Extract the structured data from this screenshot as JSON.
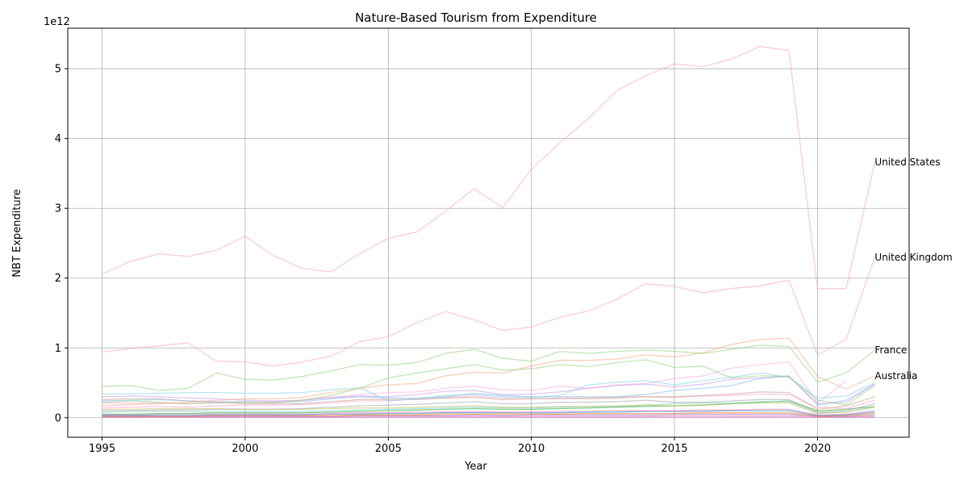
{
  "chart_data": {
    "type": "line",
    "title": "Nature-Based Tourism from Expenditure",
    "xlabel": "Year",
    "ylabel": "NBT Expenditure",
    "offset_label": "1e12",
    "x": [
      1995,
      1996,
      1997,
      1998,
      1999,
      2000,
      2001,
      2002,
      2003,
      2004,
      2005,
      2006,
      2007,
      2008,
      2009,
      2010,
      2011,
      2012,
      2013,
      2014,
      2015,
      2016,
      2017,
      2018,
      2019,
      2020,
      2021,
      2022
    ],
    "xticks": [
      1995,
      2000,
      2005,
      2010,
      2015,
      2020
    ],
    "yticks": [
      0,
      1,
      2,
      3,
      4,
      5
    ],
    "xlim": [
      1993.8,
      2023.2
    ],
    "ylim": [
      -0.28,
      5.58
    ],
    "grid": true,
    "line_alpha": 0.55,
    "series": [
      {
        "name": "United States",
        "color": "#f7a1c4",
        "labeled": true,
        "values": [
          2.06,
          2.24,
          2.35,
          2.31,
          2.4,
          2.6,
          2.32,
          2.14,
          2.09,
          2.35,
          2.57,
          2.66,
          2.96,
          3.28,
          3.01,
          3.56,
          3.94,
          4.29,
          4.69,
          4.9,
          5.07,
          5.03,
          5.14,
          5.32,
          5.26,
          1.85,
          1.85,
          3.66
        ]
      },
      {
        "name": "United Kingdom",
        "color": "#f7a1c4",
        "labeled": true,
        "values": [
          0.94,
          0.99,
          1.03,
          1.07,
          0.81,
          0.8,
          0.74,
          0.8,
          0.88,
          1.09,
          1.16,
          1.36,
          1.52,
          1.4,
          1.25,
          1.3,
          1.44,
          1.53,
          1.7,
          1.92,
          1.88,
          1.79,
          1.85,
          1.89,
          1.97,
          0.9,
          1.12,
          2.3
        ]
      },
      {
        "name": "France",
        "color": "#8fcf7a",
        "labeled": true,
        "values": [
          0.45,
          0.46,
          0.39,
          0.42,
          0.64,
          0.55,
          0.54,
          0.59,
          0.67,
          0.76,
          0.75,
          0.79,
          0.92,
          0.98,
          0.85,
          0.81,
          0.95,
          0.92,
          0.95,
          0.97,
          0.95,
          0.92,
          0.98,
          1.04,
          1.02,
          0.51,
          0.64,
          0.97
        ]
      },
      {
        "name": "Australia",
        "color": "#f4a582",
        "labeled": true,
        "values": [
          0.17,
          0.19,
          0.2,
          0.22,
          0.25,
          0.27,
          0.27,
          0.29,
          0.36,
          0.42,
          0.47,
          0.49,
          0.6,
          0.65,
          0.64,
          0.74,
          0.82,
          0.82,
          0.84,
          0.9,
          0.87,
          0.93,
          1.05,
          1.12,
          1.14,
          0.59,
          0.41,
          0.6
        ]
      },
      {
        "color": "#8fcf7a",
        "values": [
          0.22,
          0.24,
          0.22,
          0.2,
          0.21,
          0.22,
          0.21,
          0.25,
          0.32,
          0.42,
          0.57,
          0.64,
          0.7,
          0.76,
          0.68,
          0.7,
          0.76,
          0.73,
          0.79,
          0.83,
          0.72,
          0.74,
          0.57,
          0.6,
          0.59,
          0.25,
          0.18,
          0.46
        ]
      },
      {
        "color": "#7fd1e8",
        "values": [
          0.34,
          0.34,
          0.35,
          0.36,
          0.36,
          0.35,
          0.35,
          0.36,
          0.4,
          0.43,
          0.24,
          0.27,
          0.32,
          0.33,
          0.3,
          0.29,
          0.32,
          0.47,
          0.51,
          0.53,
          0.47,
          0.53,
          0.58,
          0.64,
          0.58,
          0.28,
          0.31,
          0.5
        ]
      },
      {
        "color": "#c49be8",
        "values": [
          0.3,
          0.31,
          0.3,
          0.28,
          0.27,
          0.25,
          0.24,
          0.25,
          0.29,
          0.31,
          0.3,
          0.33,
          0.38,
          0.39,
          0.33,
          0.34,
          0.37,
          0.42,
          0.46,
          0.48,
          0.44,
          0.48,
          0.55,
          0.57,
          0.59,
          0.2,
          0.22,
          0.48
        ]
      },
      {
        "color": "#f9a8e0",
        "values": [
          0.21,
          0.21,
          0.21,
          0.2,
          0.22,
          0.22,
          0.23,
          0.25,
          0.29,
          0.33,
          0.36,
          0.37,
          0.42,
          0.45,
          0.4,
          0.39,
          0.45,
          0.42,
          0.47,
          0.49,
          0.56,
          0.6,
          0.71,
          0.76,
          0.8,
          0.21,
          0.53,
          null
        ]
      },
      {
        "color": "#7fb8e8",
        "values": [
          0.24,
          0.25,
          0.26,
          0.24,
          0.23,
          0.23,
          0.22,
          0.23,
          0.27,
          0.3,
          0.28,
          0.28,
          0.3,
          0.35,
          0.32,
          0.3,
          0.3,
          0.3,
          0.3,
          0.33,
          0.39,
          0.42,
          0.46,
          0.56,
          0.6,
          0.18,
          0.25,
          0.48
        ]
      },
      {
        "color": "#c8a18a",
        "values": [
          0.26,
          0.27,
          0.27,
          0.24,
          0.22,
          0.2,
          0.2,
          0.2,
          0.23,
          0.26,
          0.26,
          0.26,
          0.28,
          0.29,
          0.26,
          0.27,
          0.28,
          0.28,
          0.29,
          0.3,
          0.3,
          0.32,
          0.34,
          0.37,
          0.36,
          0.12,
          0.17,
          0.3
        ]
      },
      {
        "color": "#f7a1c4",
        "values": [
          0.14,
          0.15,
          0.16,
          0.15,
          0.17,
          0.18,
          0.18,
          0.19,
          0.21,
          0.24,
          0.24,
          0.27,
          0.29,
          0.31,
          0.28,
          0.27,
          0.27,
          0.27,
          0.28,
          0.3,
          0.29,
          0.31,
          0.32,
          0.34,
          0.33,
          0.15,
          0.13,
          0.25
        ]
      },
      {
        "color": "#9ea3a6",
        "values": [
          0.1,
          0.1,
          0.11,
          0.11,
          0.12,
          0.12,
          0.12,
          0.13,
          0.15,
          0.17,
          0.18,
          0.19,
          0.21,
          0.23,
          0.2,
          0.2,
          0.22,
          0.22,
          0.23,
          0.25,
          0.22,
          0.22,
          0.24,
          0.26,
          0.26,
          0.08,
          0.1,
          0.2
        ]
      },
      {
        "color": "#bfbf5a",
        "values": [
          0.12,
          0.12,
          0.13,
          0.13,
          0.13,
          0.12,
          0.12,
          0.12,
          0.13,
          0.14,
          0.14,
          0.15,
          0.16,
          0.17,
          0.15,
          0.15,
          0.16,
          0.16,
          0.17,
          0.18,
          0.17,
          0.18,
          0.2,
          0.21,
          0.21,
          0.06,
          0.08,
          0.16
        ]
      },
      {
        "color": "#6fd3c4",
        "values": [
          0.08,
          0.09,
          0.09,
          0.09,
          0.09,
          0.09,
          0.09,
          0.09,
          0.1,
          0.11,
          0.12,
          0.13,
          0.14,
          0.15,
          0.14,
          0.14,
          0.15,
          0.16,
          0.16,
          0.18,
          0.2,
          0.21,
          0.21,
          0.23,
          0.23,
          0.07,
          0.08,
          0.15
        ]
      },
      {
        "color": "#2ca02c",
        "values": [
          0.05,
          0.05,
          0.06,
          0.06,
          0.07,
          0.07,
          0.07,
          0.07,
          0.08,
          0.09,
          0.1,
          0.11,
          0.12,
          0.13,
          0.12,
          0.12,
          0.13,
          0.14,
          0.15,
          0.16,
          0.17,
          0.18,
          0.2,
          0.22,
          0.24,
          0.1,
          0.12,
          0.16
        ]
      },
      {
        "color": "#e377c2",
        "values": [
          0.04,
          0.04,
          0.05,
          0.05,
          0.05,
          0.05,
          0.05,
          0.05,
          0.06,
          0.07,
          0.07,
          0.08,
          0.08,
          0.09,
          0.08,
          0.08,
          0.09,
          0.09,
          0.1,
          0.1,
          0.1,
          0.11,
          0.11,
          0.12,
          0.12,
          0.04,
          0.05,
          0.1
        ]
      },
      {
        "color": "#1f77b4",
        "values": [
          0.03,
          0.03,
          0.03,
          0.03,
          0.04,
          0.04,
          0.04,
          0.04,
          0.05,
          0.05,
          0.06,
          0.06,
          0.07,
          0.07,
          0.07,
          0.07,
          0.07,
          0.08,
          0.08,
          0.09,
          0.09,
          0.09,
          0.1,
          0.1,
          0.1,
          0.03,
          0.04,
          0.08
        ]
      },
      {
        "color": "#ff7f0e",
        "values": [
          0.02,
          0.02,
          0.02,
          0.02,
          0.03,
          0.03,
          0.03,
          0.03,
          0.03,
          0.04,
          0.04,
          0.04,
          0.05,
          0.05,
          0.05,
          0.05,
          0.05,
          0.06,
          0.06,
          0.06,
          0.06,
          0.07,
          0.07,
          0.07,
          0.07,
          0.02,
          0.03,
          0.06
        ]
      },
      {
        "color": "#9467bd",
        "values": [
          0.02,
          0.02,
          0.02,
          0.02,
          0.02,
          0.02,
          0.02,
          0.02,
          0.02,
          0.03,
          0.03,
          0.03,
          0.03,
          0.04,
          0.03,
          0.04,
          0.04,
          0.04,
          0.04,
          0.04,
          0.05,
          0.05,
          0.05,
          0.05,
          0.05,
          0.02,
          0.02,
          0.04
        ]
      },
      {
        "color": "#e377c2",
        "values": [
          0.01,
          0.01,
          0.01,
          0.01,
          0.01,
          0.01,
          0.01,
          0.01,
          0.01,
          0.02,
          0.02,
          0.02,
          0.02,
          0.02,
          0.02,
          0.02,
          0.02,
          0.02,
          0.02,
          0.02,
          0.03,
          0.03,
          0.03,
          0.03,
          0.03,
          0.01,
          0.01,
          0.02
        ]
      },
      {
        "color": "#e377c2",
        "values": [
          0.005,
          0.005,
          0.005,
          0.005,
          0.005,
          0.005,
          0.005,
          0.005,
          0.006,
          0.006,
          0.007,
          0.007,
          0.008,
          0.008,
          0.008,
          0.008,
          0.009,
          0.009,
          0.009,
          0.01,
          0.01,
          0.01,
          0.011,
          0.011,
          0.011,
          0.004,
          0.005,
          0.009
        ]
      }
    ]
  }
}
